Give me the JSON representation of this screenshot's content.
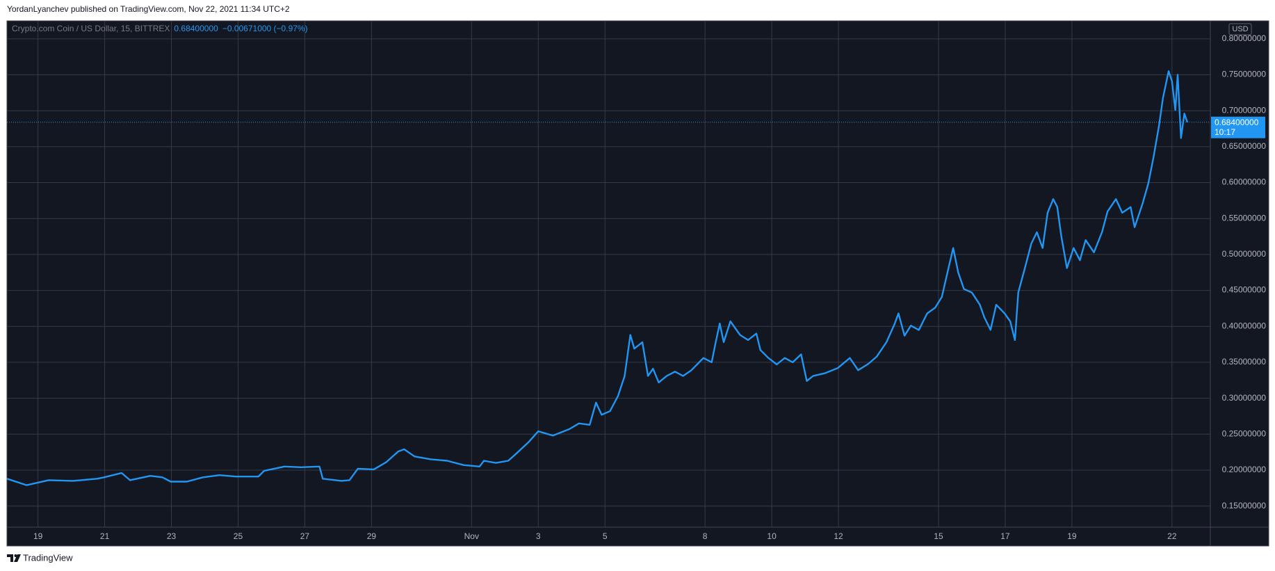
{
  "header": "YordanLyanchev published on TradingView.com, Nov 22, 2021 11:34 UTC+2",
  "footer": "TradingView",
  "chart_data": {
    "type": "line",
    "currency": "USD",
    "change": "−0.00671000 (−0.97%)",
    "last_price": {
      "value": 0.684,
      "label": "0.68400000"
    },
    "countdown": "10:17",
    "grid": true,
    "x": [
      18.07,
      18.66,
      19.32,
      20.05,
      20.78,
      20.98,
      21.51,
      21.76,
      22.37,
      22.73,
      22.98,
      23.46,
      23.95,
      24.44,
      24.93,
      25.61,
      25.78,
      26.39,
      26.88,
      27.44,
      27.54,
      28.1,
      28.34,
      28.59,
      29.07,
      29.44,
      29.8,
      29.98,
      30.29,
      30.78,
      31.27,
      31.76,
      32.24,
      32.37,
      32.73,
      33.1,
      33.34,
      33.71,
      34.0,
      34.44,
      34.93,
      35.22,
      35.54,
      35.73,
      35.9,
      36.15,
      36.39,
      36.59,
      36.76,
      36.88,
      37.12,
      37.29,
      37.44,
      37.61,
      37.85,
      38.1,
      38.34,
      38.59,
      38.95,
      39.2,
      39.32,
      39.44,
      39.56,
      39.76,
      40.05,
      40.29,
      40.54,
      40.66,
      40.9,
      41.15,
      41.39,
      41.63,
      41.88,
      42.05,
      42.24,
      42.61,
      42.98,
      43.34,
      43.59,
      43.9,
      44.15,
      44.44,
      44.68,
      44.8,
      44.98,
      45.17,
      45.41,
      45.66,
      45.9,
      46.1,
      46.27,
      46.44,
      46.59,
      46.76,
      47.0,
      47.24,
      47.37,
      47.56,
      47.73,
      47.98,
      48.15,
      48.29,
      48.39,
      48.59,
      48.78,
      48.95,
      49.12,
      49.27,
      49.44,
      49.56,
      49.68,
      49.85,
      50.05,
      50.24,
      50.41,
      50.66,
      50.9,
      51.07,
      51.32,
      51.51,
      51.76,
      51.88,
      52.12,
      52.29,
      52.44,
      52.61,
      52.73,
      52.9,
      53.0,
      53.1,
      53.17,
      53.27,
      53.37,
      53.46
    ],
    "series": [
      {
        "name": "Crypto.com Coin / US Dollar, 15, BITTREX",
        "color": "#2196f3",
        "values": [
          0.188,
          0.179,
          0.186,
          0.185,
          0.188,
          0.19,
          0.196,
          0.186,
          0.192,
          0.19,
          0.184,
          0.184,
          0.19,
          0.193,
          0.191,
          0.191,
          0.199,
          0.205,
          0.204,
          0.205,
          0.188,
          0.185,
          0.186,
          0.202,
          0.201,
          0.211,
          0.226,
          0.229,
          0.219,
          0.215,
          0.213,
          0.207,
          0.205,
          0.213,
          0.21,
          0.213,
          0.223,
          0.239,
          0.254,
          0.248,
          0.257,
          0.265,
          0.263,
          0.294,
          0.277,
          0.282,
          0.303,
          0.331,
          0.388,
          0.369,
          0.378,
          0.331,
          0.341,
          0.322,
          0.331,
          0.337,
          0.331,
          0.339,
          0.356,
          0.35,
          0.378,
          0.404,
          0.378,
          0.407,
          0.388,
          0.381,
          0.39,
          0.367,
          0.356,
          0.347,
          0.356,
          0.35,
          0.361,
          0.324,
          0.331,
          0.335,
          0.342,
          0.356,
          0.339,
          0.348,
          0.358,
          0.378,
          0.403,
          0.418,
          0.387,
          0.401,
          0.395,
          0.418,
          0.426,
          0.441,
          0.475,
          0.509,
          0.475,
          0.452,
          0.447,
          0.43,
          0.413,
          0.395,
          0.43,
          0.418,
          0.407,
          0.381,
          0.447,
          0.481,
          0.515,
          0.531,
          0.509,
          0.558,
          0.577,
          0.566,
          0.526,
          0.481,
          0.509,
          0.492,
          0.52,
          0.503,
          0.531,
          0.56,
          0.577,
          0.558,
          0.566,
          0.538,
          0.571,
          0.599,
          0.634,
          0.679,
          0.718,
          0.755,
          0.741,
          0.701,
          0.75,
          0.662,
          0.696,
          0.684
        ]
      }
    ],
    "xlim": [
      18.07,
      54.15
    ],
    "xticks": [
      19,
      21,
      23,
      25,
      27,
      29,
      {
        "value": 32,
        "label": "Nov"
      },
      {
        "value": 34,
        "label": "3"
      },
      {
        "value": 36,
        "label": "5"
      },
      {
        "value": 39,
        "label": "8"
      },
      {
        "value": 41,
        "label": "10"
      },
      {
        "value": 43,
        "label": "12"
      },
      {
        "value": 46,
        "label": "15"
      },
      {
        "value": 48,
        "label": "17"
      },
      {
        "value": 50,
        "label": "19"
      },
      {
        "value": 53,
        "label": "22"
      }
    ],
    "ylim": [
      0.1206,
      0.825
    ],
    "yticks": [
      {
        "value": 0.15,
        "label": "0.15000000"
      },
      {
        "value": 0.2,
        "label": "0.20000000"
      },
      {
        "value": 0.25,
        "label": "0.25000000"
      },
      {
        "value": 0.3,
        "label": "0.30000000"
      },
      {
        "value": 0.35,
        "label": "0.35000000"
      },
      {
        "value": 0.4,
        "label": "0.40000000"
      },
      {
        "value": 0.45,
        "label": "0.45000000"
      },
      {
        "value": 0.5,
        "label": "0.50000000"
      },
      {
        "value": 0.55,
        "label": "0.55000000"
      },
      {
        "value": 0.6,
        "label": "0.60000000"
      },
      {
        "value": 0.65,
        "label": "0.65000000"
      },
      {
        "value": 0.7,
        "label": "0.70000000"
      },
      {
        "value": 0.75,
        "label": "0.75000000"
      },
      {
        "value": 0.8,
        "label": "0.80000000"
      }
    ]
  }
}
